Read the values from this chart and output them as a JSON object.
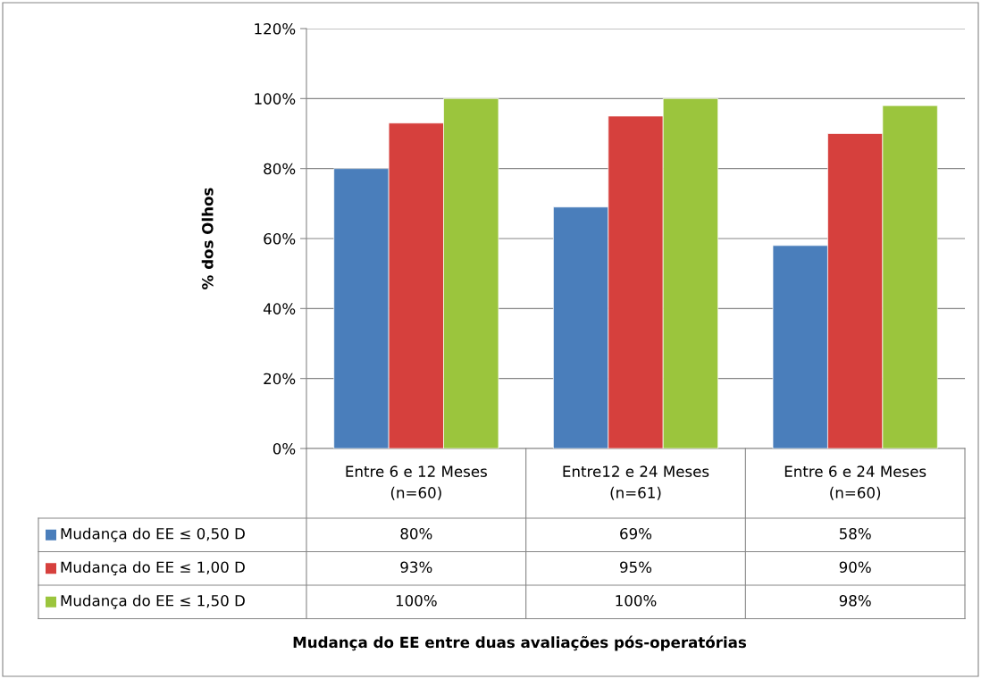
{
  "chart_data": {
    "type": "bar",
    "categories": [
      "Entre 6 e 12 Meses\n(n=60)",
      "Entre12 e 24 Meses\n(n=61)",
      "Entre 6 e 24 Meses\n(n=60)"
    ],
    "series": [
      {
        "name": "Mudança do EE ≤ 0,50 D",
        "color": "#4a7ebb",
        "values": [
          80,
          69,
          58
        ]
      },
      {
        "name": "Mudança do EE ≤ 1,00 D",
        "color": "#d6403d",
        "values": [
          93,
          95,
          90
        ]
      },
      {
        "name": "Mudança do EE ≤ 1,50 D",
        "color": "#9bc53d",
        "values": [
          100,
          100,
          98
        ]
      }
    ],
    "value_labels": [
      [
        "80%",
        "69%",
        "58%"
      ],
      [
        "93%",
        "95%",
        "90%"
      ],
      [
        "100%",
        "100%",
        "98%"
      ]
    ],
    "ylabel": "% dos Olhos",
    "annotations": [
      "Mudança do EE entre duas avaliações pós-operatórias"
    ],
    "ylim": [
      0,
      120
    ],
    "yticks": [
      {
        "value": 0,
        "label": "0%"
      },
      {
        "value": 20,
        "label": "20%"
      },
      {
        "value": 40,
        "label": "40%"
      },
      {
        "value": 60,
        "label": "60%"
      },
      {
        "value": 80,
        "label": "80%"
      },
      {
        "value": 100,
        "label": "100%"
      },
      {
        "value": 120,
        "label": "120%"
      }
    ],
    "grid": "y",
    "legend": "bottom"
  }
}
